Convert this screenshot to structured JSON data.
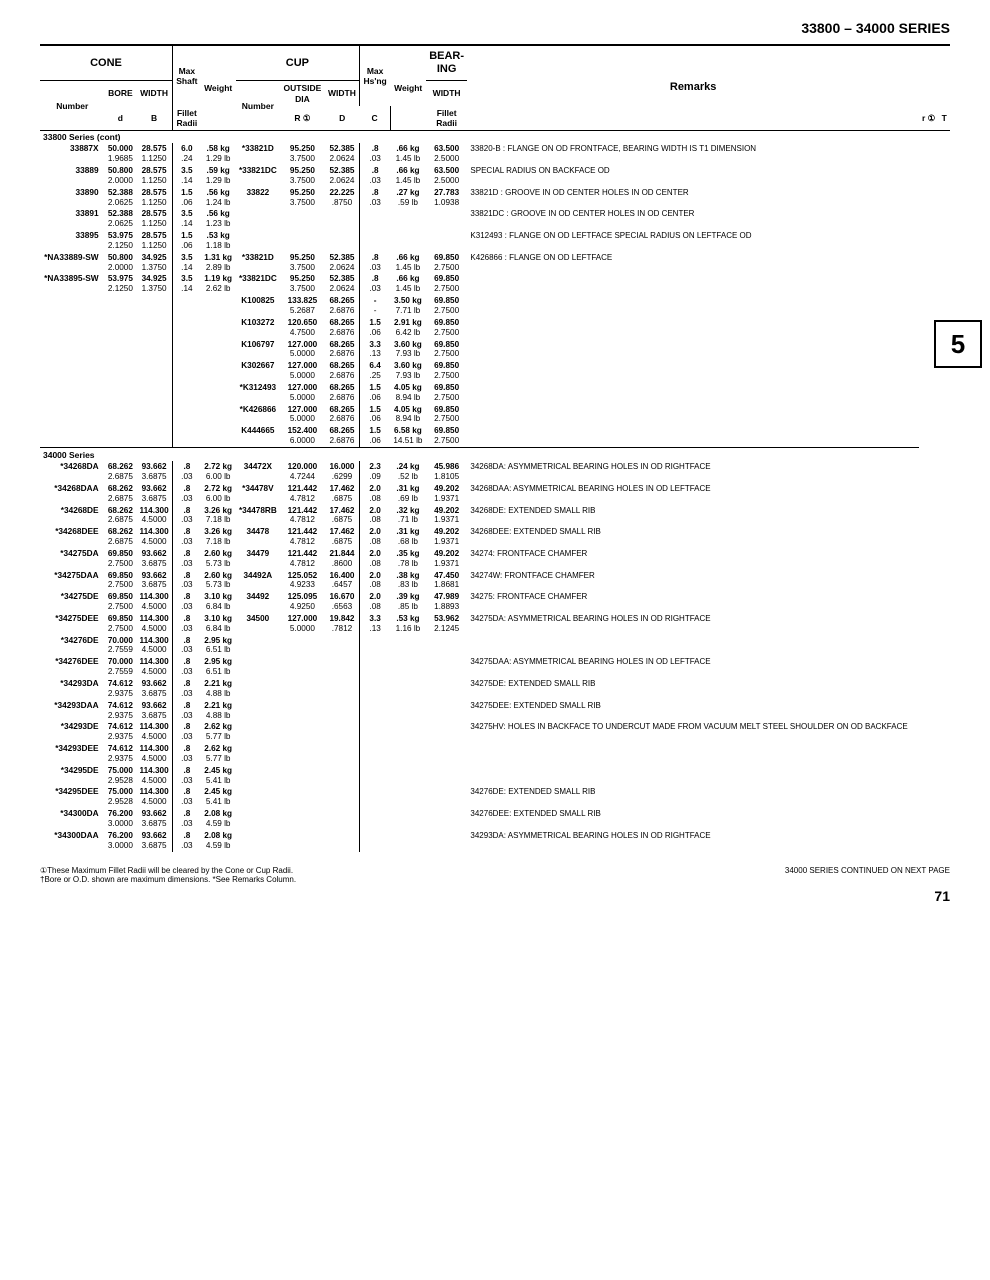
{
  "page_title": "33800 – 34000 SERIES",
  "side_tab": "5",
  "headers": {
    "cone": "CONE",
    "cup": "CUP",
    "bearing": "BEAR-\nING",
    "remarks": "Remarks",
    "number": "Number",
    "bore": "BORE",
    "width_b": "WIDTH",
    "max_shaft": "Max\nShaft",
    "fillet_radii": "Fillet\nRadii",
    "weight": "Weight",
    "outside_dia": "OUTSIDE\nDIA",
    "width_c": "WIDTH",
    "max_hsng": "Max\nHs'ng",
    "width_t": "WIDTH",
    "d": "d",
    "B": "B",
    "R1": "R ①",
    "D": "D",
    "C": "C",
    "r1": "r ①",
    "T": "T"
  },
  "section1_title": "33800 Series (cont)",
  "section2_title": "34000 Series",
  "rows1": [
    {
      "no": "33887X",
      "d": "50.000",
      "d2": "1.9685",
      "B": "28.575",
      "B2": "1.1250",
      "R": "6.0",
      "R2": ".24",
      "w": ".58 kg",
      "w2": "1.29 lb",
      "cup": "*33821D",
      "D": "95.250",
      "D2": "3.7500",
      "C": "52.385",
      "C2": "2.0624",
      "r": ".8",
      "r2": ".03",
      "wc": ".66 kg",
      "wc2": "1.45 lb",
      "T": "63.500",
      "T2": "2.5000",
      "rem": "33820-B : FLANGE ON OD FRONTFACE, BEARING WIDTH IS T1 DIMENSION"
    },
    {
      "no": "33889",
      "d": "50.800",
      "d2": "2.0000",
      "B": "28.575",
      "B2": "1.1250",
      "R": "3.5",
      "R2": ".14",
      "w": ".59 kg",
      "w2": "1.29 lb",
      "cup": "*33821DC",
      "D": "95.250",
      "D2": "3.7500",
      "C": "52.385",
      "C2": "2.0624",
      "r": ".8",
      "r2": ".03",
      "wc": ".66 kg",
      "wc2": "1.45 lb",
      "T": "63.500",
      "T2": "2.5000",
      "rem": "SPECIAL RADIUS ON BACKFACE OD"
    },
    {
      "no": "33890",
      "d": "52.388",
      "d2": "2.0625",
      "B": "28.575",
      "B2": "1.1250",
      "R": "1.5",
      "R2": ".06",
      "w": ".56 kg",
      "w2": "1.24 lb",
      "cup": "33822",
      "D": "95.250",
      "D2": "3.7500",
      "C": "22.225",
      "C2": ".8750",
      "r": ".8",
      "r2": ".03",
      "wc": ".27 kg",
      "wc2": ".59 lb",
      "T": "27.783",
      "T2": "1.0938",
      "rem": "33821D : GROOVE IN OD CENTER HOLES IN OD CENTER"
    },
    {
      "no": "33891",
      "d": "52.388",
      "d2": "2.0625",
      "B": "28.575",
      "B2": "1.1250",
      "R": "3.5",
      "R2": ".14",
      "w": ".56 kg",
      "w2": "1.23 lb",
      "cup": "",
      "D": "",
      "D2": "",
      "C": "",
      "C2": "",
      "r": "",
      "r2": "",
      "wc": "",
      "wc2": "",
      "T": "",
      "T2": "",
      "rem": "33821DC : GROOVE IN OD CENTER HOLES IN OD CENTER"
    },
    {
      "no": "33895",
      "d": "53.975",
      "d2": "2.1250",
      "B": "28.575",
      "B2": "1.1250",
      "R": "1.5",
      "R2": ".06",
      "w": ".53 kg",
      "w2": "1.18 lb",
      "cup": "",
      "D": "",
      "D2": "",
      "C": "",
      "C2": "",
      "r": "",
      "r2": "",
      "wc": "",
      "wc2": "",
      "T": "",
      "T2": "",
      "rem": "K312493 : FLANGE ON OD LEFTFACE SPECIAL RADIUS ON LEFTFACE OD"
    },
    {
      "no": "*NA33889-SW",
      "d": "50.800",
      "d2": "2.0000",
      "B": "34.925",
      "B2": "1.3750",
      "R": "3.5",
      "R2": ".14",
      "w": "1.31 kg",
      "w2": "2.89 lb",
      "cup": "*33821D",
      "D": "95.250",
      "D2": "3.7500",
      "C": "52.385",
      "C2": "2.0624",
      "r": ".8",
      "r2": ".03",
      "wc": ".66 kg",
      "wc2": "1.45 lb",
      "T": "69.850",
      "T2": "2.7500",
      "rem": "K426866 : FLANGE ON OD LEFTFACE"
    },
    {
      "no": "*NA33895-SW",
      "d": "53.975",
      "d2": "2.1250",
      "B": "34.925",
      "B2": "1.3750",
      "R": "3.5",
      "R2": ".14",
      "w": "1.19 kg",
      "w2": "2.62 lb",
      "cup": "*33821DC",
      "D": "95.250",
      "D2": "3.7500",
      "C": "52.385",
      "C2": "2.0624",
      "r": ".8",
      "r2": ".03",
      "wc": ".66 kg",
      "wc2": "1.45 lb",
      "T": "69.850",
      "T2": "2.7500",
      "rem": ""
    },
    {
      "no": "",
      "d": "",
      "d2": "",
      "B": "",
      "B2": "",
      "R": "",
      "R2": "",
      "w": "",
      "w2": "",
      "cup": "K100825",
      "D": "133.825",
      "D2": "5.2687",
      "C": "68.265",
      "C2": "2.6876",
      "r": "-",
      "r2": "-",
      "wc": "3.50 kg",
      "wc2": "7.71 lb",
      "T": "69.850",
      "T2": "2.7500",
      "rem": ""
    },
    {
      "no": "",
      "d": "",
      "d2": "",
      "B": "",
      "B2": "",
      "R": "",
      "R2": "",
      "w": "",
      "w2": "",
      "cup": "K103272",
      "D": "120.650",
      "D2": "4.7500",
      "C": "68.265",
      "C2": "2.6876",
      "r": "1.5",
      "r2": ".06",
      "wc": "2.91 kg",
      "wc2": "6.42 lb",
      "T": "69.850",
      "T2": "2.7500",
      "rem": ""
    },
    {
      "no": "",
      "d": "",
      "d2": "",
      "B": "",
      "B2": "",
      "R": "",
      "R2": "",
      "w": "",
      "w2": "",
      "cup": "K106797",
      "D": "127.000",
      "D2": "5.0000",
      "C": "68.265",
      "C2": "2.6876",
      "r": "3.3",
      "r2": ".13",
      "wc": "3.60 kg",
      "wc2": "7.93 lb",
      "T": "69.850",
      "T2": "2.7500",
      "rem": ""
    },
    {
      "no": "",
      "d": "",
      "d2": "",
      "B": "",
      "B2": "",
      "R": "",
      "R2": "",
      "w": "",
      "w2": "",
      "cup": "K302667",
      "D": "127.000",
      "D2": "5.0000",
      "C": "68.265",
      "C2": "2.6876",
      "r": "6.4",
      "r2": ".25",
      "wc": "3.60 kg",
      "wc2": "7.93 lb",
      "T": "69.850",
      "T2": "2.7500",
      "rem": ""
    },
    {
      "no": "",
      "d": "",
      "d2": "",
      "B": "",
      "B2": "",
      "R": "",
      "R2": "",
      "w": "",
      "w2": "",
      "cup": "*K312493",
      "D": "127.000",
      "D2": "5.0000",
      "C": "68.265",
      "C2": "2.6876",
      "r": "1.5",
      "r2": ".06",
      "wc": "4.05 kg",
      "wc2": "8.94 lb",
      "T": "69.850",
      "T2": "2.7500",
      "rem": ""
    },
    {
      "no": "",
      "d": "",
      "d2": "",
      "B": "",
      "B2": "",
      "R": "",
      "R2": "",
      "w": "",
      "w2": "",
      "cup": "*K426866",
      "D": "127.000",
      "D2": "5.0000",
      "C": "68.265",
      "C2": "2.6876",
      "r": "1.5",
      "r2": ".06",
      "wc": "4.05 kg",
      "wc2": "8.94 lb",
      "T": "69.850",
      "T2": "2.7500",
      "rem": ""
    },
    {
      "no": "",
      "d": "",
      "d2": "",
      "B": "",
      "B2": "",
      "R": "",
      "R2": "",
      "w": "",
      "w2": "",
      "cup": "K444665",
      "D": "152.400",
      "D2": "6.0000",
      "C": "68.265",
      "C2": "2.6876",
      "r": "1.5",
      "r2": ".06",
      "wc": "6.58 kg",
      "wc2": "14.51 lb",
      "T": "69.850",
      "T2": "2.7500",
      "rem": ""
    }
  ],
  "rows2": [
    {
      "no": "*34268DA",
      "d": "68.262",
      "d2": "2.6875",
      "B": "93.662",
      "B2": "3.6875",
      "R": ".8",
      "R2": ".03",
      "w": "2.72 kg",
      "w2": "6.00 lb",
      "cup": "34472X",
      "D": "120.000",
      "D2": "4.7244",
      "C": "16.000",
      "C2": ".6299",
      "r": "2.3",
      "r2": ".09",
      "wc": ".24 kg",
      "wc2": ".52 lb",
      "T": "45.986",
      "T2": "1.8105",
      "rem": "34268DA: ASYMMETRICAL BEARING HOLES IN OD RIGHTFACE"
    },
    {
      "no": "*34268DAA",
      "d": "68.262",
      "d2": "2.6875",
      "B": "93.662",
      "B2": "3.6875",
      "R": ".8",
      "R2": ".03",
      "w": "2.72 kg",
      "w2": "6.00 lb",
      "cup": "*34478V",
      "D": "121.442",
      "D2": "4.7812",
      "C": "17.462",
      "C2": ".6875",
      "r": "2.0",
      "r2": ".08",
      "wc": ".31 kg",
      "wc2": ".69 lb",
      "T": "49.202",
      "T2": "1.9371",
      "rem": "34268DAA: ASYMMETRICAL BEARING HOLES IN OD LEFTFACE"
    },
    {
      "no": "*34268DE",
      "d": "68.262",
      "d2": "2.6875",
      "B": "114.300",
      "B2": "4.5000",
      "R": ".8",
      "R2": ".03",
      "w": "3.26 kg",
      "w2": "7.18 lb",
      "cup": "*34478RB",
      "D": "121.442",
      "D2": "4.7812",
      "C": "17.462",
      "C2": ".6875",
      "r": "2.0",
      "r2": ".08",
      "wc": ".32 kg",
      "wc2": ".71 lb",
      "T": "49.202",
      "T2": "1.9371",
      "rem": "34268DE: EXTENDED SMALL RIB"
    },
    {
      "no": "*34268DEE",
      "d": "68.262",
      "d2": "2.6875",
      "B": "114.300",
      "B2": "4.5000",
      "R": ".8",
      "R2": ".03",
      "w": "3.26 kg",
      "w2": "7.18 lb",
      "cup": "34478",
      "D": "121.442",
      "D2": "4.7812",
      "C": "17.462",
      "C2": ".6875",
      "r": "2.0",
      "r2": ".08",
      "wc": ".31 kg",
      "wc2": ".68 lb",
      "T": "49.202",
      "T2": "1.9371",
      "rem": "34268DEE: EXTENDED SMALL RIB"
    },
    {
      "no": "*34275DA",
      "d": "69.850",
      "d2": "2.7500",
      "B": "93.662",
      "B2": "3.6875",
      "R": ".8",
      "R2": ".03",
      "w": "2.60 kg",
      "w2": "5.73 lb",
      "cup": "34479",
      "D": "121.442",
      "D2": "4.7812",
      "C": "21.844",
      "C2": ".8600",
      "r": "2.0",
      "r2": ".08",
      "wc": ".35 kg",
      "wc2": ".78 lb",
      "T": "49.202",
      "T2": "1.9371",
      "rem": "34274: FRONTFACE CHAMFER"
    },
    {
      "no": "*34275DAA",
      "d": "69.850",
      "d2": "2.7500",
      "B": "93.662",
      "B2": "3.6875",
      "R": ".8",
      "R2": ".03",
      "w": "2.60 kg",
      "w2": "5.73 lb",
      "cup": "34492A",
      "D": "125.052",
      "D2": "4.9233",
      "C": "16.400",
      "C2": ".6457",
      "r": "2.0",
      "r2": ".08",
      "wc": ".38 kg",
      "wc2": ".83 lb",
      "T": "47.450",
      "T2": "1.8681",
      "rem": "34274W: FRONTFACE CHAMFER"
    },
    {
      "no": "*34275DE",
      "d": "69.850",
      "d2": "2.7500",
      "B": "114.300",
      "B2": "4.5000",
      "R": ".8",
      "R2": ".03",
      "w": "3.10 kg",
      "w2": "6.84 lb",
      "cup": "34492",
      "D": "125.095",
      "D2": "4.9250",
      "C": "16.670",
      "C2": ".6563",
      "r": "2.0",
      "r2": ".08",
      "wc": ".39 kg",
      "wc2": ".85 lb",
      "T": "47.989",
      "T2": "1.8893",
      "rem": "34275: FRONTFACE CHAMFER"
    },
    {
      "no": "*34275DEE",
      "d": "69.850",
      "d2": "2.7500",
      "B": "114.300",
      "B2": "4.5000",
      "R": ".8",
      "R2": ".03",
      "w": "3.10 kg",
      "w2": "6.84 lb",
      "cup": "34500",
      "D": "127.000",
      "D2": "5.0000",
      "C": "19.842",
      "C2": ".7812",
      "r": "3.3",
      "r2": ".13",
      "wc": ".53 kg",
      "wc2": "1.16 lb",
      "T": "53.962",
      "T2": "2.1245",
      "rem": "34275DA: ASYMMETRICAL BEARING HOLES IN OD RIGHTFACE"
    },
    {
      "no": "*34276DE",
      "d": "70.000",
      "d2": "2.7559",
      "B": "114.300",
      "B2": "4.5000",
      "R": ".8",
      "R2": ".03",
      "w": "2.95 kg",
      "w2": "6.51 lb",
      "cup": "",
      "D": "",
      "D2": "",
      "C": "",
      "C2": "",
      "r": "",
      "r2": "",
      "wc": "",
      "wc2": "",
      "T": "",
      "T2": "",
      "rem": ""
    },
    {
      "no": "*34276DEE",
      "d": "70.000",
      "d2": "2.7559",
      "B": "114.300",
      "B2": "4.5000",
      "R": ".8",
      "R2": ".03",
      "w": "2.95 kg",
      "w2": "6.51 lb",
      "cup": "",
      "D": "",
      "D2": "",
      "C": "",
      "C2": "",
      "r": "",
      "r2": "",
      "wc": "",
      "wc2": "",
      "T": "",
      "T2": "",
      "rem": "34275DAA: ASYMMETRICAL BEARING HOLES IN OD LEFTFACE"
    },
    {
      "no": "*34293DA",
      "d": "74.612",
      "d2": "2.9375",
      "B": "93.662",
      "B2": "3.6875",
      "R": ".8",
      "R2": ".03",
      "w": "2.21 kg",
      "w2": "4.88 lb",
      "cup": "",
      "D": "",
      "D2": "",
      "C": "",
      "C2": "",
      "r": "",
      "r2": "",
      "wc": "",
      "wc2": "",
      "T": "",
      "T2": "",
      "rem": "34275DE: EXTENDED SMALL RIB"
    },
    {
      "no": "*34293DAA",
      "d": "74.612",
      "d2": "2.9375",
      "B": "93.662",
      "B2": "3.6875",
      "R": ".8",
      "R2": ".03",
      "w": "2.21 kg",
      "w2": "4.88 lb",
      "cup": "",
      "D": "",
      "D2": "",
      "C": "",
      "C2": "",
      "r": "",
      "r2": "",
      "wc": "",
      "wc2": "",
      "T": "",
      "T2": "",
      "rem": "34275DEE: EXTENDED SMALL RIB"
    },
    {
      "no": "*34293DE",
      "d": "74.612",
      "d2": "2.9375",
      "B": "114.300",
      "B2": "4.5000",
      "R": ".8",
      "R2": ".03",
      "w": "2.62 kg",
      "w2": "5.77 lb",
      "cup": "",
      "D": "",
      "D2": "",
      "C": "",
      "C2": "",
      "r": "",
      "r2": "",
      "wc": "",
      "wc2": "",
      "T": "",
      "T2": "",
      "rem": "34275HV: HOLES IN BACKFACE TO UNDERCUT MADE FROM VACUUM MELT STEEL SHOULDER ON OD BACKFACE"
    },
    {
      "no": "*34293DEE",
      "d": "74.612",
      "d2": "2.9375",
      "B": "114.300",
      "B2": "4.5000",
      "R": ".8",
      "R2": ".03",
      "w": "2.62 kg",
      "w2": "5.77 lb",
      "cup": "",
      "D": "",
      "D2": "",
      "C": "",
      "C2": "",
      "r": "",
      "r2": "",
      "wc": "",
      "wc2": "",
      "T": "",
      "T2": "",
      "rem": ""
    },
    {
      "no": "*34295DE",
      "d": "75.000",
      "d2": "2.9528",
      "B": "114.300",
      "B2": "4.5000",
      "R": ".8",
      "R2": ".03",
      "w": "2.45 kg",
      "w2": "5.41 lb",
      "cup": "",
      "D": "",
      "D2": "",
      "C": "",
      "C2": "",
      "r": "",
      "r2": "",
      "wc": "",
      "wc2": "",
      "T": "",
      "T2": "",
      "rem": ""
    },
    {
      "no": "*34295DEE",
      "d": "75.000",
      "d2": "2.9528",
      "B": "114.300",
      "B2": "4.5000",
      "R": ".8",
      "R2": ".03",
      "w": "2.45 kg",
      "w2": "5.41 lb",
      "cup": "",
      "D": "",
      "D2": "",
      "C": "",
      "C2": "",
      "r": "",
      "r2": "",
      "wc": "",
      "wc2": "",
      "T": "",
      "T2": "",
      "rem": "34276DE: EXTENDED SMALL RIB"
    },
    {
      "no": "*34300DA",
      "d": "76.200",
      "d2": "3.0000",
      "B": "93.662",
      "B2": "3.6875",
      "R": ".8",
      "R2": ".03",
      "w": "2.08 kg",
      "w2": "4.59 lb",
      "cup": "",
      "D": "",
      "D2": "",
      "C": "",
      "C2": "",
      "r": "",
      "r2": "",
      "wc": "",
      "wc2": "",
      "T": "",
      "T2": "",
      "rem": "34276DEE: EXTENDED SMALL RIB"
    },
    {
      "no": "*34300DAA",
      "d": "76.200",
      "d2": "3.0000",
      "B": "93.662",
      "B2": "3.6875",
      "R": ".8",
      "R2": ".03",
      "w": "2.08 kg",
      "w2": "4.59 lb",
      "cup": "",
      "D": "",
      "D2": "",
      "C": "",
      "C2": "",
      "r": "",
      "r2": "",
      "wc": "",
      "wc2": "",
      "T": "",
      "T2": "",
      "rem": "34293DA: ASYMMETRICAL BEARING HOLES IN OD RIGHTFACE"
    }
  ],
  "footnote_left": "①These Maximum Fillet Radii will be cleared by the Cone or Cup Radii.\n†Bore or O.D. shown are maximum dimensions.   *See Remarks Column.",
  "footnote_right": "34000 SERIES CONTINUED ON NEXT PAGE",
  "page_number": "71"
}
